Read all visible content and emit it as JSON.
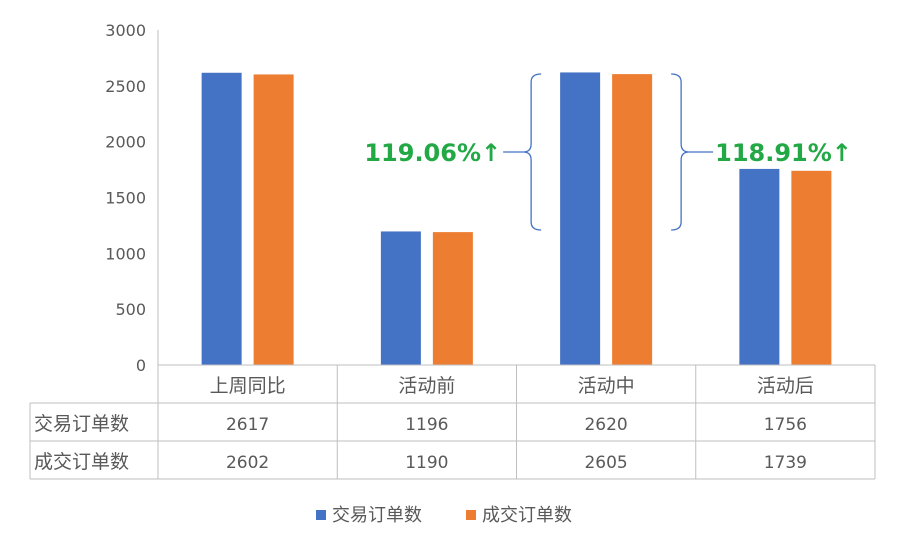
{
  "chart_data": {
    "type": "bar",
    "categories": [
      "上周同比",
      "活动前",
      "活动中",
      "活动后"
    ],
    "series": [
      {
        "name": "交易订单数",
        "values": [
          2617,
          1196,
          2620,
          1756
        ]
      },
      {
        "name": "成交订单数",
        "values": [
          2602,
          1190,
          2605,
          1739
        ]
      }
    ],
    "ylim": [
      0,
      3000
    ],
    "yticks": [
      0,
      500,
      1000,
      1500,
      2000,
      2500,
      3000
    ],
    "grid": false,
    "legend": "bottom",
    "data_table": true,
    "annotations": [
      {
        "text": "119.06%↑",
        "from": "活动前",
        "to": "活动中"
      },
      {
        "text": "118.91%↑",
        "from": "活动中",
        "to": "活动后"
      }
    ]
  },
  "colors": {
    "series": [
      "#4472C4",
      "#ED7D31"
    ],
    "annotation_text": "#22A845",
    "bracket": "#4472C4",
    "axis": "#BFBFBF",
    "text": "#595959"
  }
}
